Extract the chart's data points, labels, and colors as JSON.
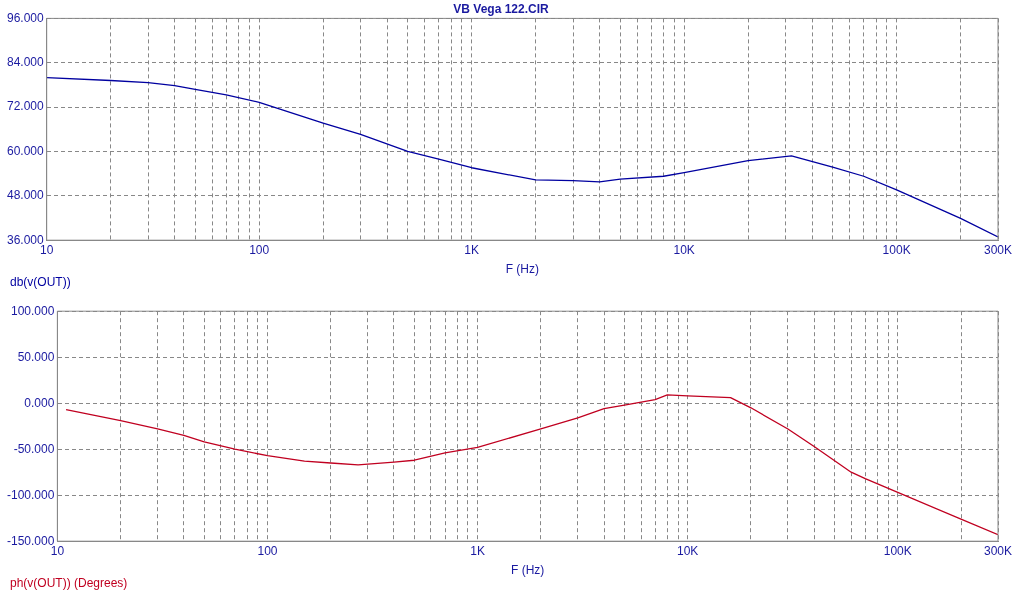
{
  "chart_data": [
    {
      "type": "line",
      "title": "VB Vega 122.CIR",
      "xlabel": "F (Hz)",
      "log": "x",
      "xlim": [
        10,
        300000
      ],
      "xticks": [
        {
          "value": 10,
          "label": "10"
        },
        {
          "value": 20,
          "label": null
        },
        {
          "value": 30,
          "label": null
        },
        {
          "value": 40,
          "label": null
        },
        {
          "value": 50,
          "label": null
        },
        {
          "value": 60,
          "label": null
        },
        {
          "value": 70,
          "label": null
        },
        {
          "value": 80,
          "label": null
        },
        {
          "value": 90,
          "label": null
        },
        {
          "value": 100,
          "label": "100"
        },
        {
          "value": 200,
          "label": null
        },
        {
          "value": 300,
          "label": null
        },
        {
          "value": 400,
          "label": null
        },
        {
          "value": 500,
          "label": null
        },
        {
          "value": 600,
          "label": null
        },
        {
          "value": 700,
          "label": null
        },
        {
          "value": 800,
          "label": null
        },
        {
          "value": 900,
          "label": null
        },
        {
          "value": 1000,
          "label": "1K"
        },
        {
          "value": 2000,
          "label": null
        },
        {
          "value": 3000,
          "label": null
        },
        {
          "value": 4000,
          "label": null
        },
        {
          "value": 5000,
          "label": null
        },
        {
          "value": 6000,
          "label": null
        },
        {
          "value": 7000,
          "label": null
        },
        {
          "value": 8000,
          "label": null
        },
        {
          "value": 9000,
          "label": null
        },
        {
          "value": 10000,
          "label": "10K"
        },
        {
          "value": 20000,
          "label": null
        },
        {
          "value": 30000,
          "label": null
        },
        {
          "value": 40000,
          "label": null
        },
        {
          "value": 50000,
          "label": null
        },
        {
          "value": 60000,
          "label": null
        },
        {
          "value": 70000,
          "label": null
        },
        {
          "value": 80000,
          "label": null
        },
        {
          "value": 90000,
          "label": null
        },
        {
          "value": 100000,
          "label": "100K"
        },
        {
          "value": 200000,
          "label": null
        },
        {
          "value": 300000,
          "label": "300K"
        }
      ],
      "ylim": [
        36,
        96
      ],
      "yticks": [
        {
          "value": 36,
          "label": "36.000"
        },
        {
          "value": 48,
          "label": "48.000"
        },
        {
          "value": 60,
          "label": "60.000"
        },
        {
          "value": 72,
          "label": "72.000"
        },
        {
          "value": 84,
          "label": "84.000"
        },
        {
          "value": 96,
          "label": "96.000"
        }
      ],
      "grid": true,
      "legend": "bottom left",
      "marker": "none",
      "series": [
        {
          "name": "db(v(OUT))",
          "color": "#0000a0",
          "x": [
            10,
            20,
            30,
            40,
            50,
            70,
            100,
            200,
            300,
            500,
            700,
            1000,
            2000,
            3000,
            4000,
            5000,
            8000,
            10000,
            20000,
            32000,
            50000,
            70000,
            100000,
            200000,
            300000
          ],
          "values": [
            80,
            79.2,
            78.6,
            77.8,
            76.8,
            75.3,
            73.3,
            67.7,
            64.6,
            60,
            57.9,
            55.6,
            52.3,
            52.1,
            51.8,
            52.5,
            53.3,
            54.3,
            57.5,
            58.8,
            55.8,
            53.3,
            49.6,
            41.9,
            36.9
          ]
        }
      ]
    },
    {
      "type": "line",
      "xlabel": "F (Hz)",
      "log": "x",
      "xlim": [
        10,
        300000
      ],
      "xticks": [
        {
          "value": 10,
          "label": "10"
        },
        {
          "value": 20,
          "label": null
        },
        {
          "value": 30,
          "label": null
        },
        {
          "value": 40,
          "label": null
        },
        {
          "value": 50,
          "label": null
        },
        {
          "value": 60,
          "label": null
        },
        {
          "value": 70,
          "label": null
        },
        {
          "value": 80,
          "label": null
        },
        {
          "value": 90,
          "label": null
        },
        {
          "value": 100,
          "label": "100"
        },
        {
          "value": 200,
          "label": null
        },
        {
          "value": 300,
          "label": null
        },
        {
          "value": 400,
          "label": null
        },
        {
          "value": 500,
          "label": null
        },
        {
          "value": 600,
          "label": null
        },
        {
          "value": 700,
          "label": null
        },
        {
          "value": 800,
          "label": null
        },
        {
          "value": 900,
          "label": null
        },
        {
          "value": 1000,
          "label": "1K"
        },
        {
          "value": 2000,
          "label": null
        },
        {
          "value": 3000,
          "label": null
        },
        {
          "value": 4000,
          "label": null
        },
        {
          "value": 5000,
          "label": null
        },
        {
          "value": 6000,
          "label": null
        },
        {
          "value": 7000,
          "label": null
        },
        {
          "value": 8000,
          "label": null
        },
        {
          "value": 9000,
          "label": null
        },
        {
          "value": 10000,
          "label": "10K"
        },
        {
          "value": 20000,
          "label": null
        },
        {
          "value": 30000,
          "label": null
        },
        {
          "value": 40000,
          "label": null
        },
        {
          "value": 50000,
          "label": null
        },
        {
          "value": 60000,
          "label": null
        },
        {
          "value": 70000,
          "label": null
        },
        {
          "value": 80000,
          "label": null
        },
        {
          "value": 90000,
          "label": null
        },
        {
          "value": 100000,
          "label": "100K"
        },
        {
          "value": 200000,
          "label": null
        },
        {
          "value": 300000,
          "label": "300K"
        }
      ],
      "ylim": [
        -150,
        100
      ],
      "yticks": [
        {
          "value": -150,
          "label": "-150.000"
        },
        {
          "value": -100,
          "label": "-100.000"
        },
        {
          "value": -50,
          "label": "-50.000"
        },
        {
          "value": 0,
          "label": "0.000"
        },
        {
          "value": 50,
          "label": "50.000"
        },
        {
          "value": 100,
          "label": "100.000"
        }
      ],
      "grid": true,
      "legend": "bottom left",
      "marker": "none",
      "series": [
        {
          "name": "ph(v(OUT)) (Degrees)",
          "color": "#c00020",
          "x": [
            11,
            20,
            30,
            40,
            50,
            70,
            100,
            150,
            200,
            270,
            400,
            500,
            700,
            1000,
            2000,
            3000,
            4000,
            5000,
            7000,
            8000,
            10000,
            16000,
            20000,
            30000,
            40000,
            60000,
            70000,
            100000,
            200000,
            300000
          ],
          "values": [
            -7,
            -19,
            -28,
            -35,
            -42,
            -50,
            -57,
            -63,
            -65,
            -67,
            -64,
            -62,
            -54,
            -48,
            -28,
            -16,
            -6,
            -2,
            4,
            9,
            8,
            6,
            -5,
            -28,
            -47,
            -75,
            -82,
            -97,
            -126,
            -143
          ]
        }
      ]
    }
  ]
}
